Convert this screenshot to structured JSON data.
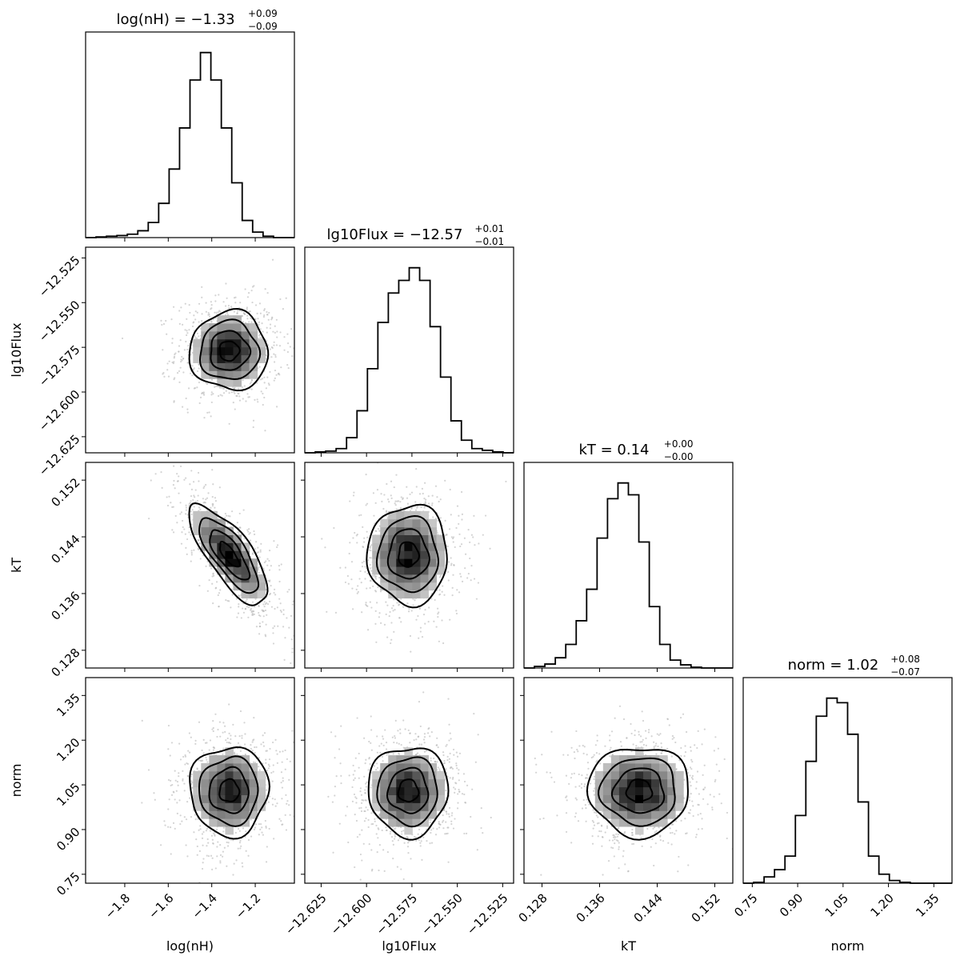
{
  "chart_data": {
    "type": "corner",
    "parameters": [
      "log(nH)",
      "lg10Flux",
      "kT",
      "norm"
    ],
    "axis_labels": [
      "log(nH)",
      "lg10Flux",
      "kT",
      "norm"
    ],
    "ranges": [
      [
        -1.98,
        -1.02
      ],
      [
        -12.634,
        -12.519
      ],
      [
        0.1255,
        0.1545
      ],
      [
        0.72,
        1.41
      ]
    ],
    "ticks": [
      [
        -1.8,
        -1.6,
        -1.4,
        -1.2
      ],
      [
        -12.625,
        -12.6,
        -12.575,
        -12.55,
        -12.525
      ],
      [
        0.128,
        0.136,
        0.144,
        0.152
      ],
      [
        0.75,
        0.9,
        1.05,
        1.2,
        1.35
      ]
    ],
    "tick_labels": [
      [
        "−1.8",
        "−1.6",
        "−1.4",
        "−1.2"
      ],
      [
        "−12.625",
        "−12.600",
        "−12.575",
        "−12.550",
        "−12.525"
      ],
      [
        "0.128",
        "0.136",
        "0.144",
        "0.152"
      ],
      [
        "0.75",
        "0.90",
        "1.05",
        "1.20",
        "1.35"
      ]
    ],
    "titles": [
      {
        "label": "log(nH)",
        "median": "−1.33",
        "plus": "+0.09",
        "minus": "−0.09"
      },
      {
        "label": "lg10Flux",
        "median": "−12.57",
        "plus": "+0.01",
        "minus": "−0.01"
      },
      {
        "label": "kT",
        "median": "0.14",
        "plus": "+0.00",
        "minus": "−0.00"
      },
      {
        "label": "norm",
        "median": "1.02",
        "plus": "+0.08",
        "minus": "−0.07"
      }
    ],
    "histograms": [
      {
        "parameter": "log(nH)",
        "bin_start": -1.98,
        "bin_width": 0.048,
        "counts": [
          0,
          1,
          2,
          3,
          5,
          10,
          22,
          50,
          100,
          160,
          230,
          270,
          230,
          160,
          80,
          25,
          8,
          2,
          0,
          0
        ]
      },
      {
        "parameter": "lg10Flux",
        "bin_start": -12.634,
        "bin_width": 0.00575,
        "counts": [
          0,
          1,
          2,
          5,
          18,
          50,
          100,
          155,
          190,
          205,
          220,
          205,
          150,
          90,
          38,
          15,
          5,
          3,
          1,
          0
        ]
      },
      {
        "parameter": "kT",
        "bin_start": 0.1255,
        "bin_width": 0.00145,
        "counts": [
          0,
          2,
          5,
          13,
          30,
          60,
          100,
          165,
          215,
          235,
          220,
          160,
          78,
          30,
          10,
          4,
          1,
          0,
          0,
          0
        ]
      },
      {
        "parameter": "norm",
        "bin_start": 0.72,
        "bin_width": 0.0345,
        "counts": [
          0,
          1,
          7,
          15,
          30,
          75,
          135,
          185,
          205,
          200,
          165,
          90,
          30,
          10,
          3,
          1,
          0,
          0,
          0,
          0
        ]
      }
    ],
    "correlations": {
      "lg10Flux|log(nH)": 0.0,
      "kT|log(nH)": -0.75,
      "kT|lg10Flux": 0.0,
      "norm|log(nH)": 0.0,
      "norm|lg10Flux": 0.0,
      "norm|kT": 0.0
    },
    "posterior_means": [
      -1.32,
      -12.577,
      0.1415,
      1.03
    ],
    "posterior_stds": [
      0.09,
      0.011,
      0.0035,
      0.075
    ],
    "contour_levels_sigma": [
      0.5,
      1.0,
      1.5,
      2.0
    ],
    "colors": {
      "line": "#000000",
      "points": "#b0b0b0",
      "density_low": "#f2f2f2",
      "density_high": "#000000"
    },
    "grid": false
  }
}
